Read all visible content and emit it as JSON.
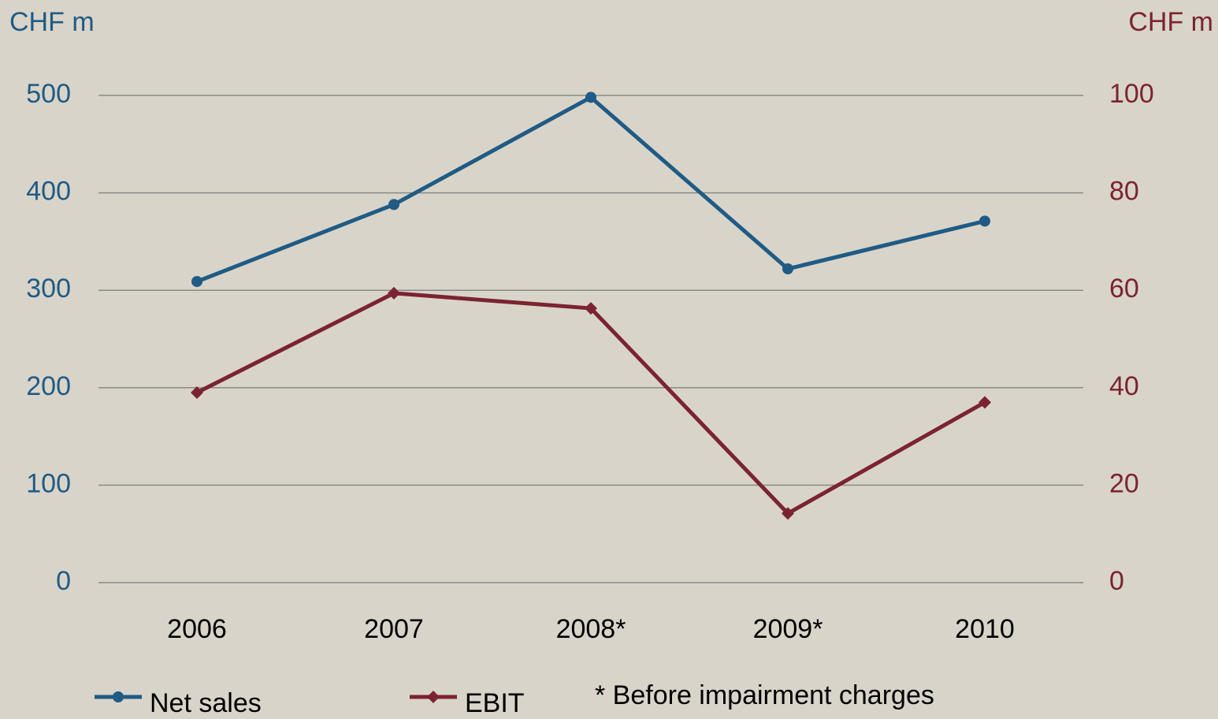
{
  "chart_data": {
    "type": "line",
    "ylabel": "CHF m",
    "y2label": "CHF m",
    "categories": [
      "2006",
      "2007",
      "2008*",
      "2009*",
      "2010"
    ],
    "series": [
      {
        "name": "Net sales",
        "color": "#1f5b85",
        "marker": "circle",
        "values": [
          309,
          388,
          498,
          322,
          371
        ]
      },
      {
        "name": "EBIT",
        "color": "#7b2332",
        "marker": "diamond",
        "axis": "y2",
        "values": [
          39,
          59.4,
          56.3,
          14.2,
          37
        ]
      }
    ],
    "ylim": [
      0,
      500
    ],
    "yticks": [
      0,
      100,
      200,
      300,
      400,
      500
    ],
    "y2lim": [
      0,
      100
    ],
    "y2ticks": [
      0,
      20,
      40,
      60,
      80,
      100
    ],
    "grid": true,
    "annotation": "* Before impairment charges"
  }
}
